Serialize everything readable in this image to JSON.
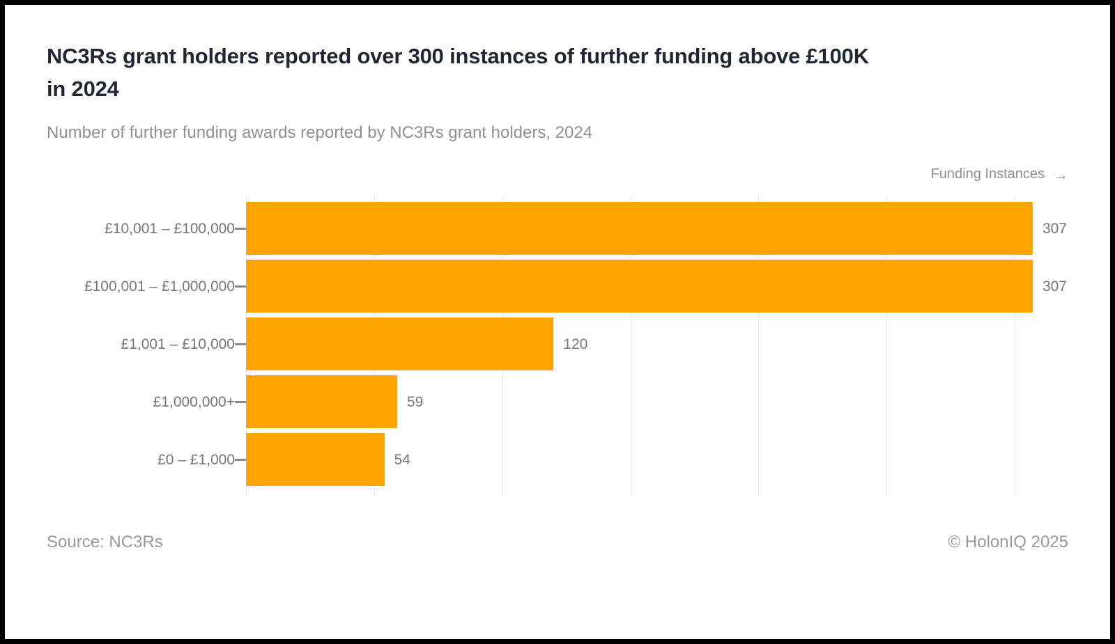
{
  "header": {
    "title_line1": "NC3Rs grant holders reported over 300 instances of further funding above £100K",
    "title_line2": "in 2024",
    "subtitle": "Number of further funding awards reported by NC3Rs grant holders, 2024"
  },
  "x_axis": {
    "title": "Funding Instances",
    "arrow": "→"
  },
  "chart_data": {
    "type": "bar",
    "orientation": "horizontal",
    "title": "NC3Rs grant holders reported over 300 instances of further funding above £100K in 2024",
    "subtitle": "Number of further funding awards reported by NC3Rs grant holders, 2024",
    "xlabel": "Funding Instances",
    "ylabel": "",
    "categories": [
      "£10,001 – £100,000",
      "£100,001 – £1,000,000",
      "£1,001 – £10,000",
      "£1,000,000+",
      "£0 – £1,000"
    ],
    "values": [
      307,
      307,
      120,
      59,
      54
    ],
    "xlim": [
      0,
      310
    ],
    "gridlines": [
      0,
      50,
      100,
      150,
      200,
      250,
      300
    ],
    "grid": true,
    "legend_position": "none",
    "bar_color": "#FFA502",
    "colors": {
      "title_text": "#1F2733",
      "subtitle_text": "#8E9095",
      "category_label": "#767676",
      "value_label": "#757575",
      "gridline": "#E7E7E7",
      "frame_border": "#000000"
    }
  },
  "footer": {
    "source": "Source: NC3Rs",
    "credit": "© HolonIQ 2025"
  }
}
